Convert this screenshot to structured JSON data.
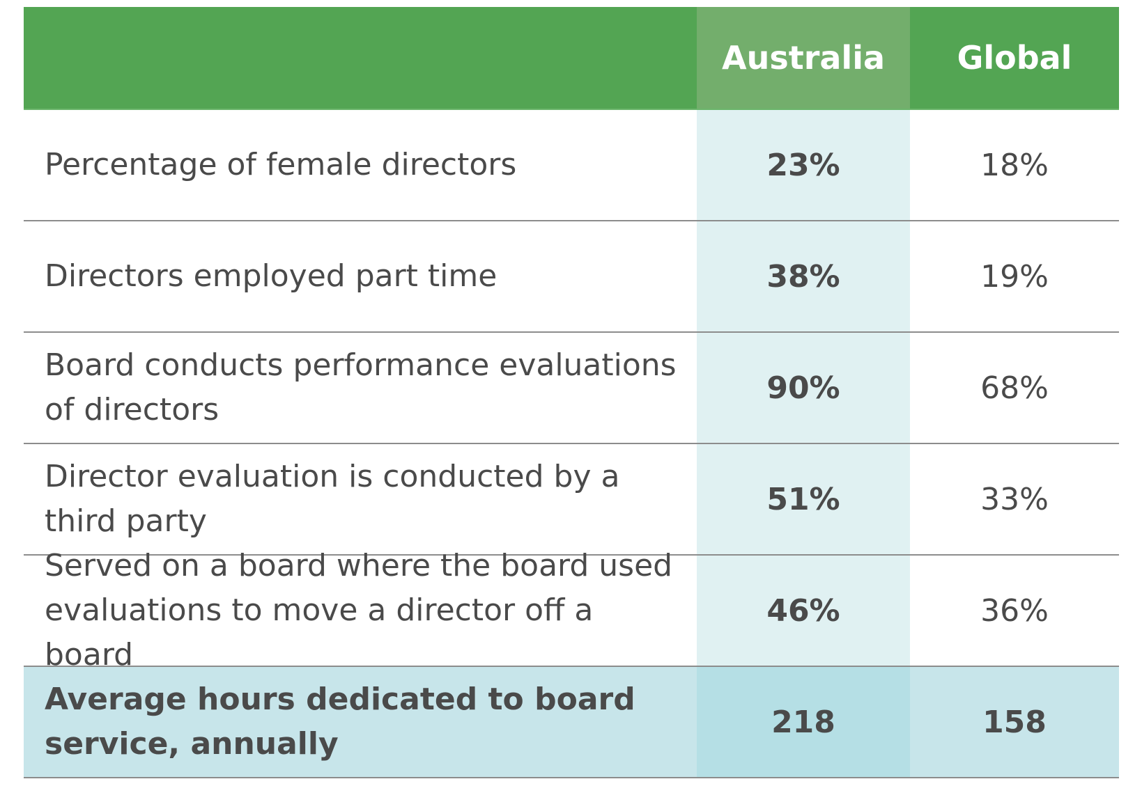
{
  "chart_data": {
    "type": "table",
    "columns": [
      "",
      "Australia",
      "Global"
    ],
    "rows": [
      {
        "label": "Percentage of female directors",
        "australia": "23%",
        "global": "18%"
      },
      {
        "label": "Directors employed part time",
        "australia": "38%",
        "global": "19%"
      },
      {
        "label": "Board conducts performance evaluations of directors",
        "australia": "90%",
        "global": "68%"
      },
      {
        "label": "Director evaluation is conducted by a third party",
        "australia": "51%",
        "global": "33%"
      },
      {
        "label": "Served on a board where the board used evaluations to move a director off a board",
        "australia": "46%",
        "global": "36%"
      },
      {
        "label": "Average hours dedicated to board service, annually",
        "australia": "218",
        "global": "158"
      }
    ],
    "colors": {
      "header": "#53a553",
      "header_highlight": "#73ae6c",
      "column_highlight": "#e0f1f2",
      "summary_row": "#c7e5ea",
      "summary_highlight": "#b5dfe5"
    }
  }
}
